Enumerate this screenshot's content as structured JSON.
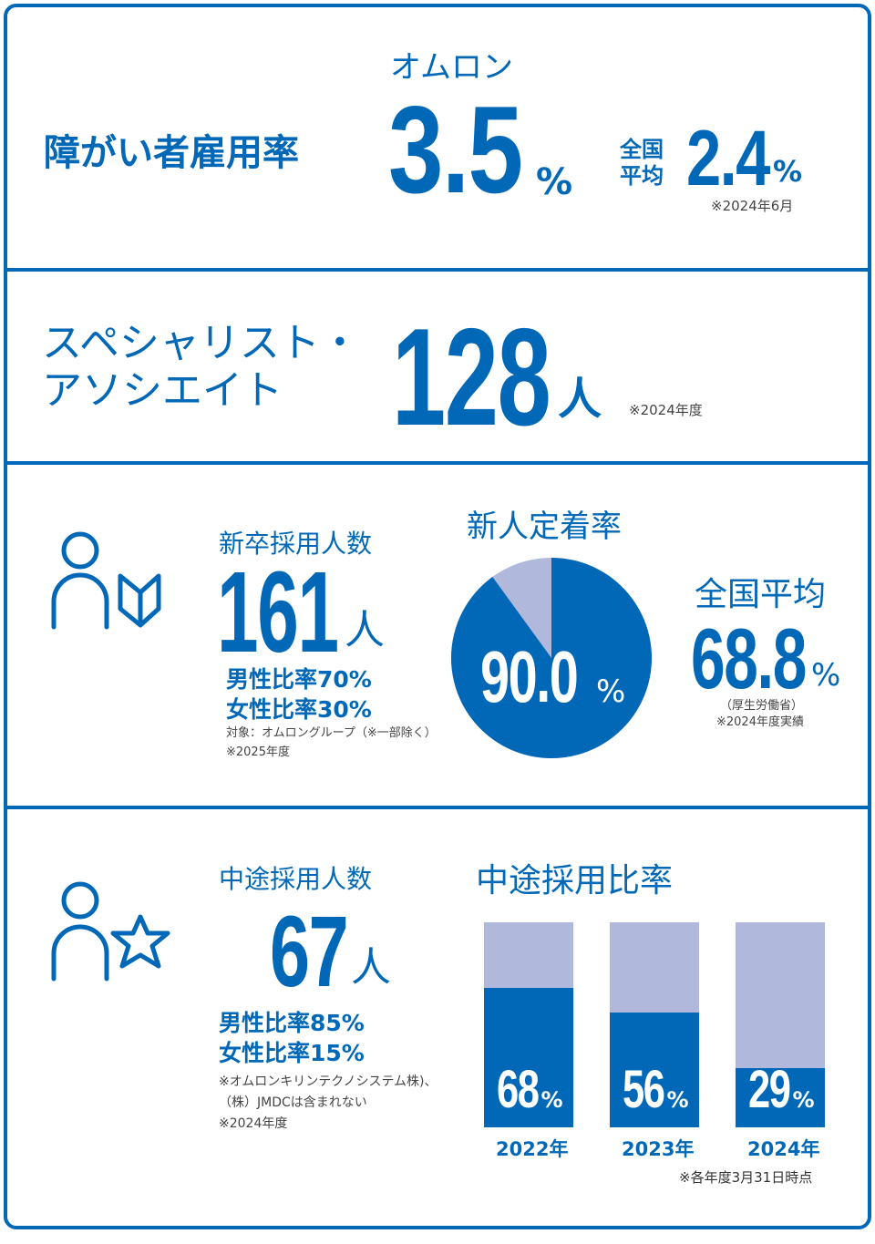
{
  "s1": {
    "title": "障がい者雇用率",
    "company": "オムロン",
    "value": "3.5",
    "unit": "%",
    "avg_l1": "全国",
    "avg_l2": "平均",
    "avg_value": "2.4",
    "avg_unit": "%",
    "note": "※2024年6月"
  },
  "s2": {
    "title_l1": "スペシャリスト・",
    "title_l2": "アソシエイト",
    "value": "128",
    "unit": "人",
    "note": "※2024年度"
  },
  "s3": {
    "title": "新卒採用人数",
    "value": "161",
    "unit": "人",
    "male": "男性比率70%",
    "female": "女性比率30%",
    "note1": "対象：オムロングループ（※一部除く）",
    "note2": "※2025年度",
    "retention_title": "新人定着率",
    "retention_value": "90.0",
    "retention_unit": "%",
    "avg_title": "全国平均",
    "avg_value": "68.8",
    "avg_unit": "%",
    "avg_note1": "（厚生労働省）",
    "avg_note2": "※2024年度実績"
  },
  "s4": {
    "title": "中途採用人数",
    "value": "67",
    "unit": "人",
    "male": "男性比率85%",
    "female": "女性比率15%",
    "note1": "※オムロンキリンテクノシステム株)、",
    "note2": "（株）JMDCは含まれない",
    "note3": "※2024年度",
    "ratio_title": "中途採用比率",
    "footnote": "※各年度3月31日時点"
  },
  "colors": {
    "primary": "#0068b7",
    "light": "#b0b8dc"
  },
  "chart_data": [
    {
      "type": "pie",
      "title": "新人定着率",
      "values": [
        90.0,
        10.0
      ],
      "data_label": "90.0%"
    },
    {
      "type": "bar",
      "stacked": true,
      "title": "中途採用比率",
      "categories": [
        "2022年",
        "2023年",
        "2024年"
      ],
      "values": [
        68,
        56,
        29
      ],
      "unit": "%",
      "ylim": [
        0,
        100
      ]
    }
  ]
}
